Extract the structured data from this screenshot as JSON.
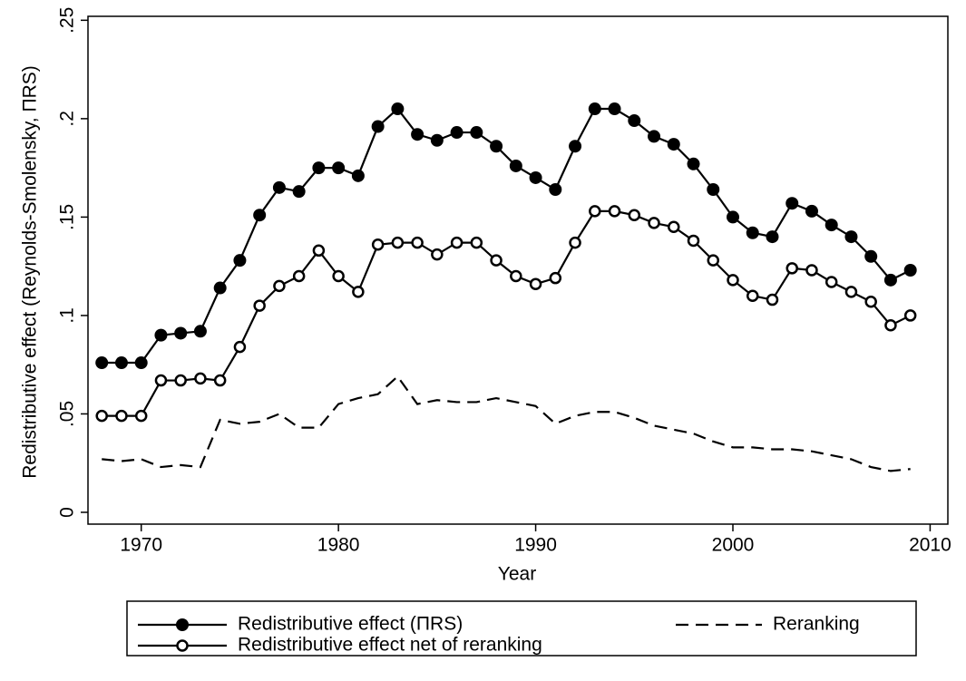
{
  "chart_data": {
    "type": "line",
    "x_label": "Year",
    "y_label": "Redistributive effect (Reynolds-Smolensky, ΠRS)",
    "x": [
      1968,
      1969,
      1970,
      1971,
      1972,
      1973,
      1974,
      1975,
      1976,
      1977,
      1978,
      1979,
      1980,
      1981,
      1982,
      1983,
      1984,
      1985,
      1986,
      1987,
      1988,
      1989,
      1990,
      1991,
      1992,
      1993,
      1994,
      1995,
      1996,
      1997,
      1998,
      1999,
      2000,
      2001,
      2002,
      2003,
      2004,
      2005,
      2006,
      2007,
      2008,
      2009
    ],
    "series": [
      {
        "name": "Redistributive effect (ΠRS)",
        "color": "#000000",
        "marker": "filled",
        "dashed": false,
        "values": [
          0.076,
          0.076,
          0.076,
          0.09,
          0.091,
          0.092,
          0.114,
          0.128,
          0.151,
          0.165,
          0.163,
          0.175,
          0.175,
          0.171,
          0.196,
          0.205,
          0.192,
          0.189,
          0.193,
          0.193,
          0.186,
          0.176,
          0.17,
          0.164,
          0.186,
          0.205,
          0.205,
          0.199,
          0.191,
          0.187,
          0.177,
          0.164,
          0.15,
          0.142,
          0.14,
          0.157,
          0.153,
          0.146,
          0.14,
          0.13,
          0.118,
          0.123
        ]
      },
      {
        "name": "Redistributive effect net of reranking",
        "color": "#000000",
        "marker": "hollow",
        "dashed": false,
        "values": [
          0.049,
          0.049,
          0.049,
          0.067,
          0.067,
          0.068,
          0.067,
          0.084,
          0.105,
          0.115,
          0.12,
          0.133,
          0.12,
          0.112,
          0.136,
          0.137,
          0.137,
          0.131,
          0.137,
          0.137,
          0.128,
          0.12,
          0.116,
          0.119,
          0.137,
          0.153,
          0.153,
          0.151,
          0.147,
          0.145,
          0.138,
          0.128,
          0.118,
          0.11,
          0.108,
          0.124,
          0.123,
          0.117,
          0.112,
          0.107,
          0.095,
          0.1
        ]
      },
      {
        "name": "Reranking",
        "color": "#000000",
        "marker": "none",
        "dashed": true,
        "values": [
          0.027,
          0.026,
          0.027,
          0.023,
          0.024,
          0.023,
          0.047,
          0.045,
          0.046,
          0.05,
          0.043,
          0.043,
          0.055,
          0.058,
          0.06,
          0.069,
          0.055,
          0.057,
          0.056,
          0.056,
          0.058,
          0.056,
          0.054,
          0.045,
          0.049,
          0.051,
          0.051,
          0.048,
          0.044,
          0.042,
          0.04,
          0.036,
          0.033,
          0.033,
          0.032,
          0.032,
          0.031,
          0.029,
          0.027,
          0.023,
          0.021,
          0.022
        ]
      }
    ],
    "xlim": [
      1967.3,
      2010.9
    ],
    "ylim": [
      -0.006,
      0.252
    ],
    "xticks": [
      1970,
      1980,
      1990,
      2000,
      2010
    ],
    "yticks": [
      0,
      {
        "value": 0.05,
        "label": ".05"
      },
      {
        "value": 0.1,
        "label": ".1"
      },
      {
        "value": 0.15,
        "label": ".15"
      },
      {
        "value": 0.2,
        "label": ".2"
      },
      {
        "value": 0.25,
        "label": ".25"
      }
    ],
    "grid": false,
    "legend": "bottom"
  }
}
